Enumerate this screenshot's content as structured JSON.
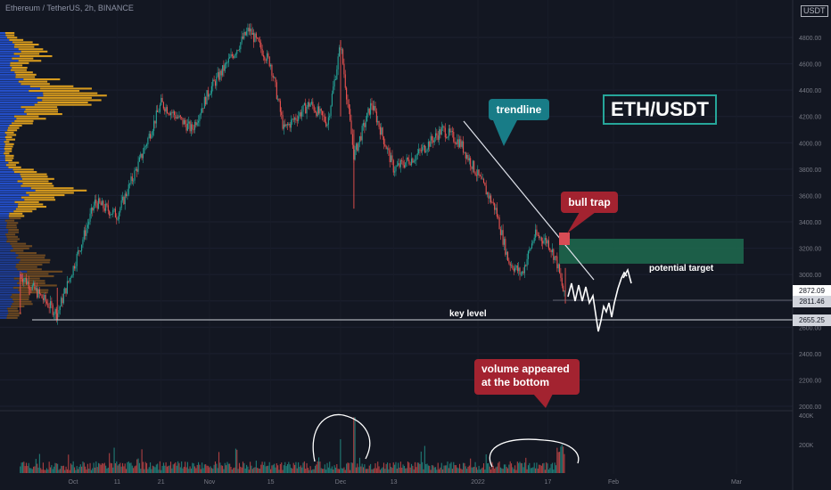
{
  "header": {
    "symbol_line": "Ethereum / TetherUS, 2h, BINANCE",
    "currency_badge": "USDT"
  },
  "annotations": {
    "pair_label": "ETH/USDT",
    "trendline_callout": "trendline",
    "bull_trap_callout": "bull trap",
    "potential_target": "potential target",
    "key_level": "key level",
    "volume_callout_line1": "volume appeared",
    "volume_callout_line2": "at the bottom"
  },
  "price_labels": {
    "current": "2872.09",
    "secondary": "2811.46",
    "key_level": "2655.25"
  },
  "colors": {
    "background": "#131722",
    "up": "#26a69a",
    "down": "#ef5350",
    "profile_blue": "#2962ff",
    "profile_gold": "#e2a21f",
    "target_zone": "#1e6b4f",
    "callout_teal": "#187c87",
    "callout_red": "#a32330"
  },
  "chart_data": {
    "type": "candlestick",
    "title": "Ethereum / TetherUS, 2h, BINANCE",
    "x_ticks": [
      "Oct",
      "11",
      "21",
      "Nov",
      "15",
      "Dec",
      "13",
      "2022",
      "17",
      "Feb",
      "Mar"
    ],
    "y_ticks": [
      2000,
      2200,
      2400,
      2600,
      2800,
      3000,
      3200,
      3400,
      3600,
      3800,
      4000,
      4200,
      4400,
      4600,
      4800
    ],
    "volume_ticks": [
      "400K",
      "200K"
    ],
    "ylim": [
      1960,
      4920
    ],
    "price_path": [
      {
        "x": "Sep 21",
        "price": 3000
      },
      {
        "x": "Sep 28",
        "price": 2700
      },
      {
        "x": "Oct 1",
        "price": 3050
      },
      {
        "x": "Oct 6",
        "price": 3550
      },
      {
        "x": "Oct 11",
        "price": 3450
      },
      {
        "x": "Oct 16",
        "price": 3850
      },
      {
        "x": "Oct 21",
        "price": 4300
      },
      {
        "x": "Oct 28",
        "price": 4100
      },
      {
        "x": "Nov 1",
        "price": 4400
      },
      {
        "x": "Nov 5",
        "price": 4600
      },
      {
        "x": "Nov 10",
        "price": 4860
      },
      {
        "x": "Nov 15",
        "price": 4600
      },
      {
        "x": "Nov 18",
        "price": 4100
      },
      {
        "x": "Nov 24",
        "price": 4300
      },
      {
        "x": "Nov 28",
        "price": 4150
      },
      {
        "x": "Dec 1",
        "price": 4750
      },
      {
        "x": "Dec 4",
        "price": 3900
      },
      {
        "x": "Dec 8",
        "price": 4300
      },
      {
        "x": "Dec 13",
        "price": 3800
      },
      {
        "x": "Dec 18",
        "price": 3900
      },
      {
        "x": "Dec 24",
        "price": 4100
      },
      {
        "x": "Dec 28",
        "price": 4000
      },
      {
        "x": "Jan 1",
        "price": 3750
      },
      {
        "x": "Jan 5",
        "price": 3500
      },
      {
        "x": "Jan 8",
        "price": 3100
      },
      {
        "x": "Jan 11",
        "price": 3000
      },
      {
        "x": "Jan 14",
        "price": 3300
      },
      {
        "x": "Jan 17",
        "price": 3250
      },
      {
        "x": "Jan 19",
        "price": 3100
      },
      {
        "x": "Jan 21",
        "price": 2800
      }
    ],
    "trendline": {
      "from": {
        "x": "Dec 29",
        "price": 4180
      },
      "to": {
        "x": "Jan 21",
        "price": 2980
      }
    },
    "target_zone": {
      "price_from": 3090,
      "price_to": 3280
    },
    "key_level": 2655.25,
    "current_price": 2872.09,
    "secondary_price": 2811.46
  }
}
